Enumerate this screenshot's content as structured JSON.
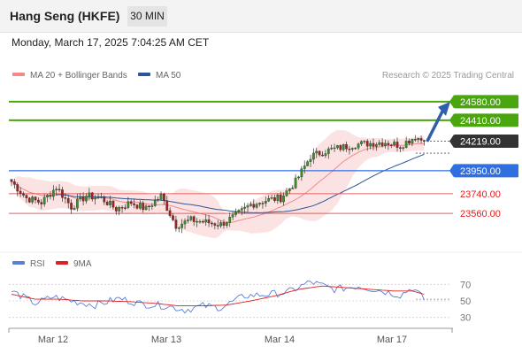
{
  "header": {
    "title": "Hang Seng (HKFE)",
    "timeframe": "30 MIN"
  },
  "datetime": "Monday, March 17, 2025 7:04:25 AM CET",
  "legend": {
    "ma20": {
      "label": "MA 20 + Bollinger Bands",
      "color": "#f08a8a"
    },
    "ma50": {
      "label": "MA 50",
      "color": "#2b5596"
    }
  },
  "copyright": "Research © 2025 Trading Central",
  "rsi_legend": {
    "rsi": {
      "label": "RSI",
      "color": "#5a7fd6"
    },
    "ma9": {
      "label": "9MA",
      "color": "#e02020"
    }
  },
  "chart_data": [
    {
      "type": "candlestick",
      "title": "",
      "ylim": [
        23230,
        24700
      ],
      "x_labels": [
        "Mar 12",
        "Mar 13",
        "Mar 14",
        "Mar 17"
      ],
      "levels": [
        {
          "value": 24580,
          "label": "24580.00",
          "kind": "resistance",
          "color": "#4aa60e"
        },
        {
          "value": 24410,
          "label": "24410.00",
          "kind": "resistance",
          "color": "#4aa60e"
        },
        {
          "value": 24219,
          "label": "24219.00",
          "kind": "last_price",
          "color": "#333333"
        },
        {
          "value": 23950,
          "label": "23950.00",
          "kind": "pivot",
          "color": "#2f6fe0"
        },
        {
          "value": 23740,
          "label": "23740.00",
          "kind": "support",
          "color": "#e06060"
        },
        {
          "value": 23560,
          "label": "23560.00",
          "kind": "support",
          "color": "#e06060"
        }
      ],
      "anchors": [
        {
          "i": 0,
          "v": 23850
        },
        {
          "i": 5,
          "v": 23700
        },
        {
          "i": 10,
          "v": 23660
        },
        {
          "i": 15,
          "v": 23800
        },
        {
          "i": 20,
          "v": 23620
        },
        {
          "i": 25,
          "v": 23720
        },
        {
          "i": 30,
          "v": 23700
        },
        {
          "i": 35,
          "v": 23600
        },
        {
          "i": 40,
          "v": 23660
        },
        {
          "i": 45,
          "v": 23600
        },
        {
          "i": 50,
          "v": 23720
        },
        {
          "i": 55,
          "v": 23450
        },
        {
          "i": 60,
          "v": 23500
        },
        {
          "i": 65,
          "v": 23480
        },
        {
          "i": 70,
          "v": 23460
        },
        {
          "i": 75,
          "v": 23540
        },
        {
          "i": 80,
          "v": 23640
        },
        {
          "i": 85,
          "v": 23680
        },
        {
          "i": 90,
          "v": 23700
        },
        {
          "i": 95,
          "v": 23850
        },
        {
          "i": 100,
          "v": 24080
        },
        {
          "i": 105,
          "v": 24130
        },
        {
          "i": 110,
          "v": 24160
        },
        {
          "i": 115,
          "v": 24190
        },
        {
          "i": 120,
          "v": 24200
        },
        {
          "i": 125,
          "v": 24210
        },
        {
          "i": 130,
          "v": 24180
        },
        {
          "i": 135,
          "v": 24260
        },
        {
          "i": 138,
          "v": 24219
        }
      ],
      "forecast_target": 24580
    },
    {
      "type": "line",
      "title": "RSI",
      "ylim": [
        20,
        80
      ],
      "y_ticks": [
        "70",
        "50",
        "30"
      ],
      "series": [
        {
          "name": "RSI",
          "anchors": [
            {
              "i": 0,
              "v": 62
            },
            {
              "i": 8,
              "v": 47
            },
            {
              "i": 14,
              "v": 55
            },
            {
              "i": 20,
              "v": 50
            },
            {
              "i": 28,
              "v": 45
            },
            {
              "i": 36,
              "v": 53
            },
            {
              "i": 44,
              "v": 46
            },
            {
              "i": 52,
              "v": 44
            },
            {
              "i": 58,
              "v": 39
            },
            {
              "i": 64,
              "v": 44
            },
            {
              "i": 70,
              "v": 42
            },
            {
              "i": 78,
              "v": 56
            },
            {
              "i": 86,
              "v": 58
            },
            {
              "i": 92,
              "v": 60
            },
            {
              "i": 100,
              "v": 73
            },
            {
              "i": 108,
              "v": 64
            },
            {
              "i": 116,
              "v": 68
            },
            {
              "i": 124,
              "v": 62
            },
            {
              "i": 130,
              "v": 57
            },
            {
              "i": 134,
              "v": 66
            },
            {
              "i": 138,
              "v": 52
            }
          ]
        },
        {
          "name": "9MA",
          "anchors": [
            {
              "i": 0,
              "v": 58
            },
            {
              "i": 8,
              "v": 52
            },
            {
              "i": 16,
              "v": 52
            },
            {
              "i": 24,
              "v": 50
            },
            {
              "i": 32,
              "v": 50
            },
            {
              "i": 40,
              "v": 49
            },
            {
              "i": 48,
              "v": 47
            },
            {
              "i": 56,
              "v": 44
            },
            {
              "i": 64,
              "v": 44
            },
            {
              "i": 72,
              "v": 45
            },
            {
              "i": 80,
              "v": 50
            },
            {
              "i": 88,
              "v": 56
            },
            {
              "i": 96,
              "v": 64
            },
            {
              "i": 104,
              "v": 68
            },
            {
              "i": 112,
              "v": 66
            },
            {
              "i": 120,
              "v": 64
            },
            {
              "i": 128,
              "v": 62
            },
            {
              "i": 134,
              "v": 62
            },
            {
              "i": 138,
              "v": 58
            }
          ]
        }
      ]
    }
  ]
}
